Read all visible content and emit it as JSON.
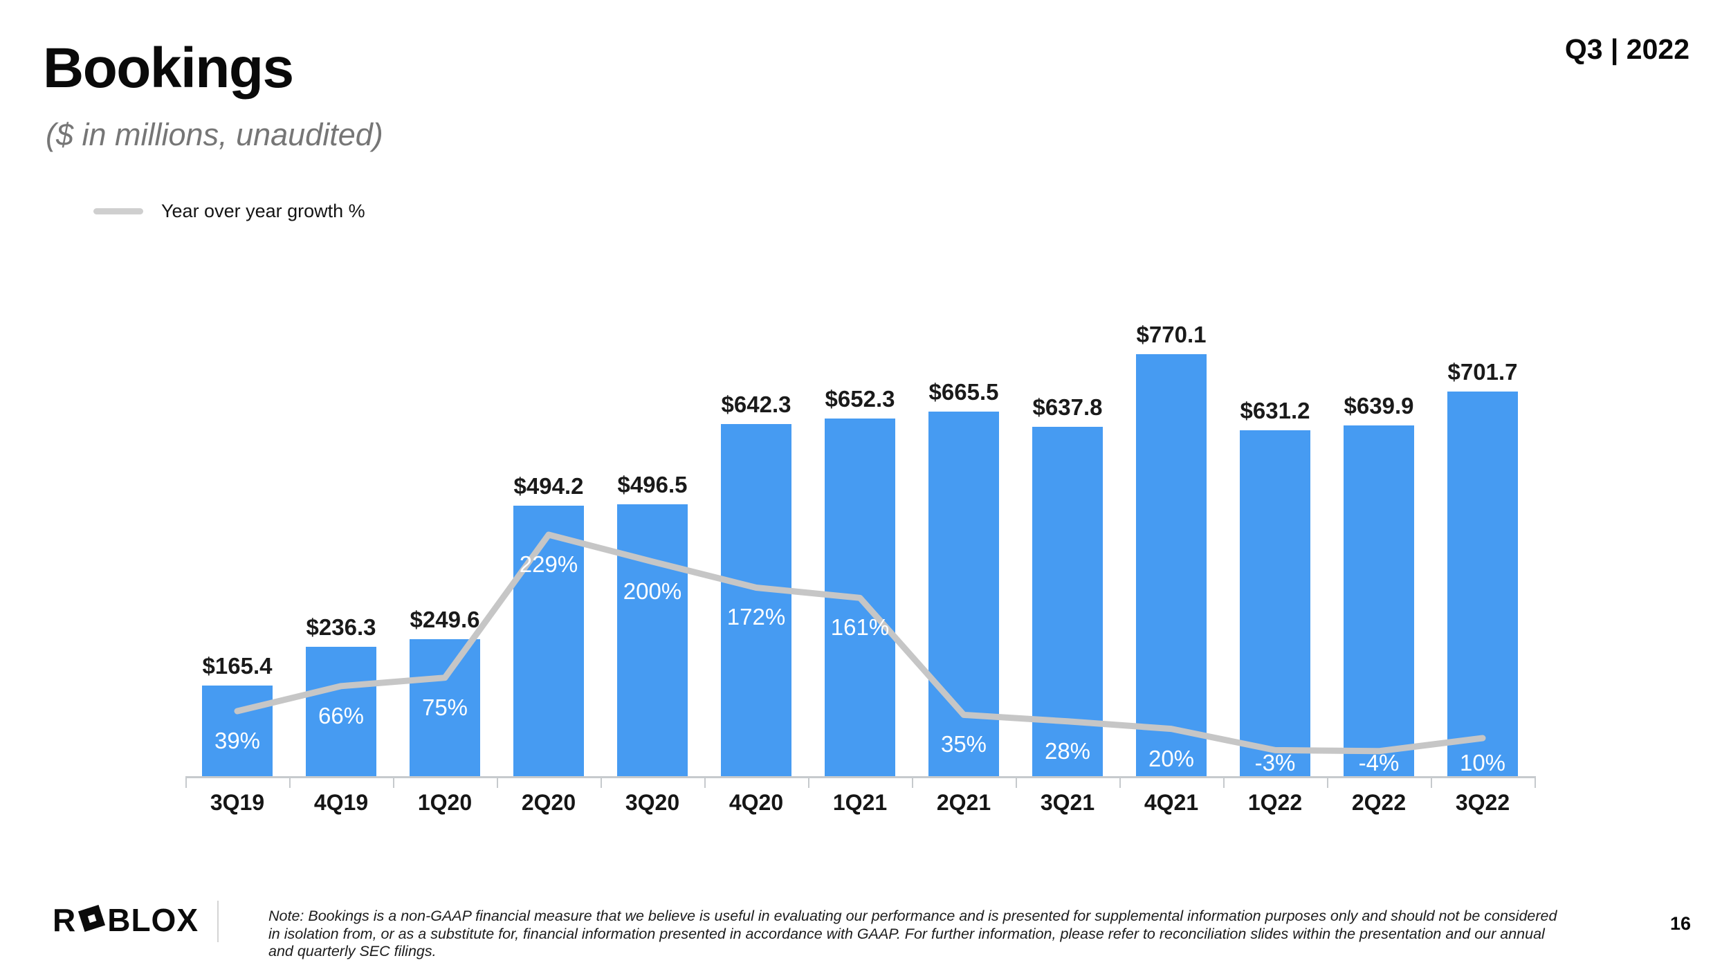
{
  "header": {
    "title": "Bookings",
    "subtitle": "($ in millions, unaudited)",
    "period_badge": "Q3 | 2022"
  },
  "legend": {
    "growth_label": "Year over year growth %"
  },
  "chart_data": {
    "type": "bar",
    "title": "Bookings ($ in millions, unaudited)",
    "categories": [
      "3Q19",
      "4Q19",
      "1Q20",
      "2Q20",
      "3Q20",
      "4Q20",
      "1Q21",
      "2Q21",
      "3Q21",
      "4Q21",
      "1Q22",
      "2Q22",
      "3Q22"
    ],
    "series": [
      {
        "name": "Bookings ($ in millions)",
        "type": "bar",
        "values": [
          165.4,
          236.3,
          249.6,
          494.2,
          496.5,
          642.3,
          652.3,
          665.5,
          637.8,
          770.1,
          631.2,
          639.9,
          701.7
        ],
        "value_prefix": "$",
        "color": "#469BF2"
      },
      {
        "name": "Year over year growth %",
        "type": "line",
        "values": [
          39,
          66,
          75,
          229,
          200,
          172,
          161,
          35,
          28,
          20,
          -3,
          -4,
          10
        ],
        "value_suffix": "%",
        "color": "#C6C6C6"
      }
    ],
    "ylim": [
      0,
      860
    ],
    "grid": false,
    "legend_position": "top-left",
    "bar_value_label_color": "#1a1a1a",
    "growth_label_color": "#ffffff",
    "axis_color": "#C6CACD"
  },
  "footer": {
    "logo": {
      "part1": "R",
      "part2": "BLOX"
    },
    "note_lines": [
      "Note: Bookings is a non-GAAP financial measure that we believe is useful in evaluating our performance and is presented for supplemental information purposes only and should not be considered",
      "in isolation from, or as a substitute for, financial information presented in accordance with GAAP. For further information, please refer to reconciliation slides within the presentation and our annual",
      "and quarterly SEC filings."
    ],
    "page_number": "16"
  }
}
